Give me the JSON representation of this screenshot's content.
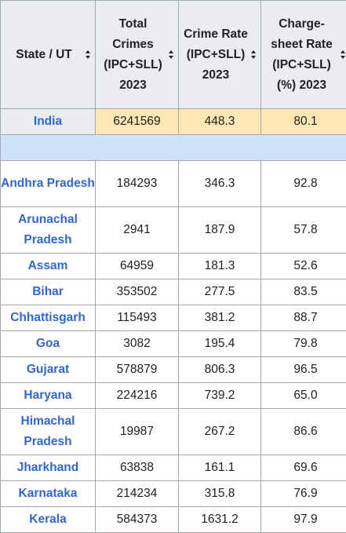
{
  "table": {
    "headers": [
      {
        "label": "State / UT"
      },
      {
        "label": "Total Crimes (IPC+SLL) 2023"
      },
      {
        "label": "Crime Rate (IPC+SLL) 2023"
      },
      {
        "label": "Charge-sheet Rate (IPC+SLL) (%) 2023"
      }
    ],
    "india": {
      "state": "India",
      "total": "6241569",
      "rate": "448.3",
      "chargesheet": "80.1"
    },
    "rows": [
      {
        "state": "Andhra Pradesh",
        "total": "184293",
        "rate": "346.3",
        "chargesheet": "92.8"
      },
      {
        "state": "Arunachal Pradesh",
        "total": "2941",
        "rate": "187.9",
        "chargesheet": "57.8"
      },
      {
        "state": "Assam",
        "total": "64959",
        "rate": "181.3",
        "chargesheet": "52.6"
      },
      {
        "state": "Bihar",
        "total": "353502",
        "rate": "277.5",
        "chargesheet": "83.5"
      },
      {
        "state": "Chhattisgarh",
        "total": "115493",
        "rate": "381.2",
        "chargesheet": "88.7"
      },
      {
        "state": "Goa",
        "total": "3082",
        "rate": "195.4",
        "chargesheet": "79.8"
      },
      {
        "state": "Gujarat",
        "total": "578879",
        "rate": "806.3",
        "chargesheet": "96.5"
      },
      {
        "state": "Haryana",
        "total": "224216",
        "rate": "739.2",
        "chargesheet": "65.0"
      },
      {
        "state": "Himachal Pradesh",
        "total": "19987",
        "rate": "267.2",
        "chargesheet": "86.6"
      },
      {
        "state": "Jharkhand",
        "total": "63838",
        "rate": "161.1",
        "chargesheet": "69.6"
      },
      {
        "state": "Karnataka",
        "total": "214234",
        "rate": "315.8",
        "chargesheet": "76.9"
      },
      {
        "state": "Kerala",
        "total": "584373",
        "rate": "1631.2",
        "chargesheet": "97.9"
      }
    ]
  },
  "colors": {
    "link": "#3366cc",
    "header_bg": "#eaecf0",
    "india_highlight": "#fee7b4",
    "spacer_row": "#cfe3f7",
    "border": "#a2a9b1"
  },
  "icons": {
    "sort": "sort-updown-icon"
  }
}
